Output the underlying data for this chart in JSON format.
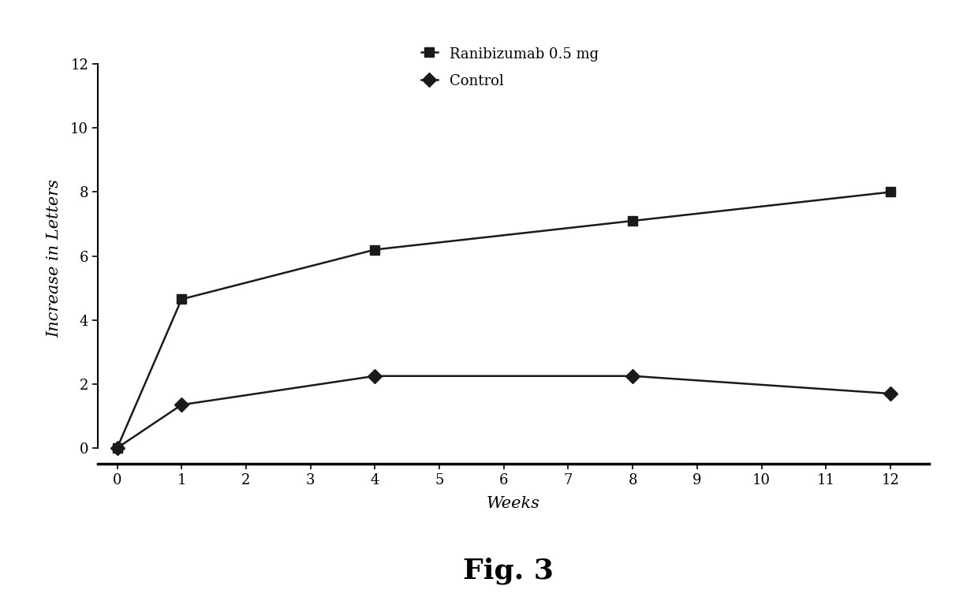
{
  "ranibizumab_x": [
    0,
    1,
    4,
    8,
    12
  ],
  "ranibizumab_y": [
    0.0,
    4.65,
    6.2,
    7.1,
    8.0
  ],
  "control_x": [
    0,
    1,
    4,
    8,
    12
  ],
  "control_y": [
    0.0,
    1.35,
    2.25,
    2.25,
    1.7
  ],
  "xlabel": "Weeks",
  "ylabel": "Increase in Letters",
  "legend_ranibizumab": "Ranibizumab 0.5 mg",
  "legend_control": "Control",
  "fig_label": "Fig. 3",
  "xlim": [
    -0.3,
    12.6
  ],
  "ylim": [
    -0.65,
    12.5
  ],
  "xticks": [
    0,
    1,
    2,
    3,
    4,
    5,
    6,
    7,
    8,
    9,
    10,
    11,
    12
  ],
  "yticks": [
    0,
    2,
    4,
    6,
    8,
    10,
    12
  ],
  "line_color": "#1a1a1a",
  "background_color": "#ffffff",
  "marker_size": 9,
  "line_width": 1.8,
  "axis_label_fontsize": 15,
  "tick_fontsize": 13,
  "legend_fontsize": 13,
  "fig_label_fontsize": 26,
  "spine_bottom_y": -0.5
}
